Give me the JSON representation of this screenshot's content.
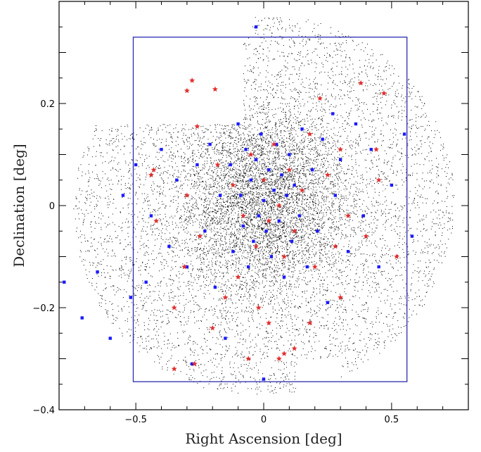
{
  "chart_data": {
    "type": "scatter",
    "title": "",
    "xlabel": "Right Ascension [deg]",
    "ylabel": "Declination [deg]",
    "xlim": [
      -0.8,
      0.8
    ],
    "ylim": [
      -0.4,
      0.4
    ],
    "x_ticks": [
      -0.5,
      0,
      0.5
    ],
    "x_tick_labels": [
      "−0.5",
      "0",
      "0.5"
    ],
    "y_ticks": [
      -0.4,
      -0.2,
      0,
      0.2
    ],
    "y_tick_labels": [
      "−0.4",
      "−0.2",
      "0",
      "0.2"
    ],
    "grid": false,
    "legend": "none",
    "field_box": {
      "ra_min": -0.51,
      "ra_max": 0.56,
      "dec_min": -0.345,
      "dec_max": 0.33,
      "color": "#2b2bb0"
    },
    "series": [
      {
        "marker": "dot",
        "color": "#000000",
        "density": "dense background field, concentrated toward center (0.0, 0.01)",
        "values": [
          [
            -0.65,
            -0.08
          ],
          [
            -0.55,
            0.05
          ],
          [
            -0.45,
            -0.22
          ],
          [
            -0.3,
            0.14
          ],
          [
            -0.12,
            -0.3
          ],
          [
            0.0,
            0.0
          ],
          [
            0.05,
            0.03
          ],
          [
            -0.05,
            -0.04
          ],
          [
            0.2,
            -0.15
          ],
          [
            0.4,
            0.25
          ],
          [
            0.55,
            0.1
          ],
          [
            0.65,
            -0.05
          ],
          [
            0.3,
            -0.2
          ],
          [
            -0.2,
            -0.35
          ],
          [
            0.1,
            0.3
          ]
        ]
      },
      {
        "marker": "square",
        "color": "#1a1aff",
        "values": [
          [
            -0.78,
            -0.15
          ],
          [
            -0.71,
            -0.22
          ],
          [
            -0.65,
            -0.13
          ],
          [
            -0.6,
            -0.26
          ],
          [
            -0.55,
            0.02
          ],
          [
            -0.52,
            -0.18
          ],
          [
            -0.5,
            0.08
          ],
          [
            -0.46,
            -0.15
          ],
          [
            -0.44,
            -0.02
          ],
          [
            -0.4,
            0.11
          ],
          [
            -0.37,
            -0.08
          ],
          [
            -0.34,
            0.05
          ],
          [
            -0.3,
            -0.12
          ],
          [
            -0.28,
            -0.31
          ],
          [
            -0.26,
            0.08
          ],
          [
            -0.23,
            -0.05
          ],
          [
            -0.21,
            0.12
          ],
          [
            -0.19,
            -0.16
          ],
          [
            -0.17,
            0.02
          ],
          [
            -0.15,
            -0.26
          ],
          [
            -0.13,
            0.08
          ],
          [
            -0.12,
            -0.09
          ],
          [
            -0.1,
            0.16
          ],
          [
            -0.09,
            0.02
          ],
          [
            -0.08,
            -0.04
          ],
          [
            -0.07,
            0.11
          ],
          [
            -0.06,
            -0.12
          ],
          [
            -0.05,
            0.05
          ],
          [
            -0.04,
            -0.07
          ],
          [
            -0.03,
            0.09
          ],
          [
            -0.02,
            -0.02
          ],
          [
            -0.01,
            0.14
          ],
          [
            0.0,
            0.01
          ],
          [
            0.01,
            -0.05
          ],
          [
            0.02,
            0.07
          ],
          [
            0.03,
            -0.1
          ],
          [
            0.04,
            0.03
          ],
          [
            0.05,
            0.12
          ],
          [
            0.06,
            -0.03
          ],
          [
            0.07,
            0.06
          ],
          [
            0.08,
            -0.14
          ],
          [
            0.09,
            0.02
          ],
          [
            0.1,
            0.1
          ],
          [
            0.11,
            -0.07
          ],
          [
            0.12,
            0.04
          ],
          [
            0.14,
            -0.02
          ],
          [
            0.15,
            0.15
          ],
          [
            0.17,
            -0.12
          ],
          [
            0.19,
            0.07
          ],
          [
            0.21,
            -0.05
          ],
          [
            0.23,
            0.13
          ],
          [
            0.25,
            -0.19
          ],
          [
            0.28,
            0.02
          ],
          [
            0.3,
            0.09
          ],
          [
            0.33,
            -0.09
          ],
          [
            0.36,
            0.16
          ],
          [
            0.39,
            -0.02
          ],
          [
            0.42,
            0.11
          ],
          [
            0.45,
            -0.12
          ],
          [
            0.5,
            0.04
          ],
          [
            0.55,
            0.14
          ],
          [
            0.58,
            -0.06
          ],
          [
            -0.03,
            0.35
          ],
          [
            0.0,
            -0.34
          ],
          [
            0.27,
            0.18
          ]
        ]
      },
      {
        "marker": "star",
        "color": "#e03030",
        "values": [
          [
            -0.28,
            0.245
          ],
          [
            -0.3,
            0.225
          ],
          [
            -0.19,
            0.228
          ],
          [
            -0.26,
            0.155
          ],
          [
            -0.43,
            0.07
          ],
          [
            -0.44,
            0.06
          ],
          [
            -0.42,
            -0.03
          ],
          [
            -0.3,
            0.02
          ],
          [
            -0.25,
            -0.06
          ],
          [
            -0.18,
            0.08
          ],
          [
            -0.12,
            0.04
          ],
          [
            -0.08,
            -0.02
          ],
          [
            -0.05,
            0.1
          ],
          [
            -0.03,
            -0.08
          ],
          [
            0.0,
            0.05
          ],
          [
            0.02,
            -0.03
          ],
          [
            0.04,
            0.12
          ],
          [
            0.06,
            0.0
          ],
          [
            0.08,
            -0.1
          ],
          [
            0.1,
            0.07
          ],
          [
            0.12,
            -0.05
          ],
          [
            0.15,
            0.03
          ],
          [
            0.18,
            0.14
          ],
          [
            0.2,
            -0.12
          ],
          [
            0.22,
            0.21
          ],
          [
            0.25,
            0.06
          ],
          [
            0.28,
            -0.08
          ],
          [
            0.3,
            0.11
          ],
          [
            0.33,
            -0.02
          ],
          [
            0.38,
            0.24
          ],
          [
            0.4,
            -0.06
          ],
          [
            0.45,
            0.05
          ],
          [
            0.47,
            0.22
          ],
          [
            0.44,
            0.11
          ],
          [
            0.52,
            -0.1
          ],
          [
            -0.35,
            -0.2
          ],
          [
            -0.31,
            -0.12
          ],
          [
            -0.27,
            -0.31
          ],
          [
            -0.2,
            -0.24
          ],
          [
            -0.15,
            -0.18
          ],
          [
            -0.1,
            -0.14
          ],
          [
            -0.06,
            -0.3
          ],
          [
            -0.02,
            -0.2
          ],
          [
            0.02,
            -0.23
          ],
          [
            0.08,
            -0.29
          ],
          [
            0.12,
            -0.28
          ],
          [
            0.18,
            -0.23
          ],
          [
            0.3,
            -0.18
          ],
          [
            -0.35,
            -0.32
          ],
          [
            0.06,
            -0.3
          ]
        ]
      }
    ]
  }
}
